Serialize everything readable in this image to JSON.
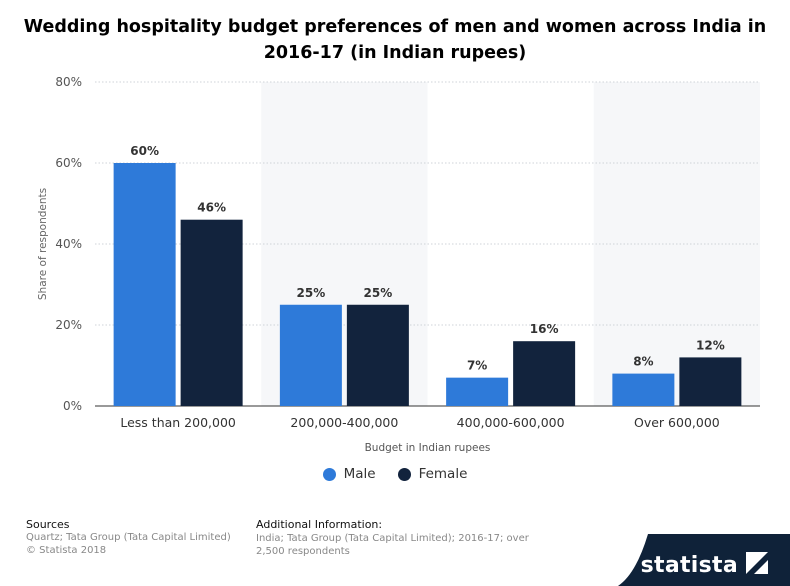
{
  "title": "Wedding hospitality budget preferences of men and women across India in 2016-17 (in Indian rupees)",
  "chart_data": {
    "type": "bar",
    "title": "Wedding hospitality budget preferences of men and women across India in 2016-17 (in Indian rupees)",
    "categories": [
      "Less than 200,000",
      "200,000-400,000",
      "400,000-600,000",
      "Over 600,000"
    ],
    "series": [
      {
        "name": "Male",
        "values": [
          60,
          25,
          7,
          8
        ],
        "labels": [
          "60%",
          "25%",
          "7%",
          "8%"
        ],
        "color": "#2e7ad9"
      },
      {
        "name": "Female",
        "values": [
          46,
          25,
          16,
          12
        ],
        "labels": [
          "46%",
          "25%",
          "16%",
          "12%"
        ],
        "color": "#12233d"
      }
    ],
    "xlabel": "Budget in Indian rupees",
    "ylabel": "Share of respondents",
    "ylim": [
      0,
      80
    ],
    "yticks": [
      0,
      20,
      40,
      60,
      80
    ],
    "ytick_labels": [
      "0%",
      "20%",
      "40%",
      "60%",
      "80%"
    ],
    "grid": true,
    "legend_position": "bottom"
  },
  "legend": [
    {
      "label": "Male",
      "color": "#2e7ad9"
    },
    {
      "label": "Female",
      "color": "#12233d"
    }
  ],
  "footer": {
    "sources_heading": "Sources",
    "sources_line1": "Quartz; Tata Group (Tata Capital Limited)",
    "sources_line2": "© Statista 2018",
    "additional_heading": "Additional Information:",
    "additional_text": "India; Tata Group (Tata Capital Limited); 2016-17; over 2,500 respondents"
  },
  "brand": {
    "name": "statista",
    "color": "#0f2239"
  }
}
